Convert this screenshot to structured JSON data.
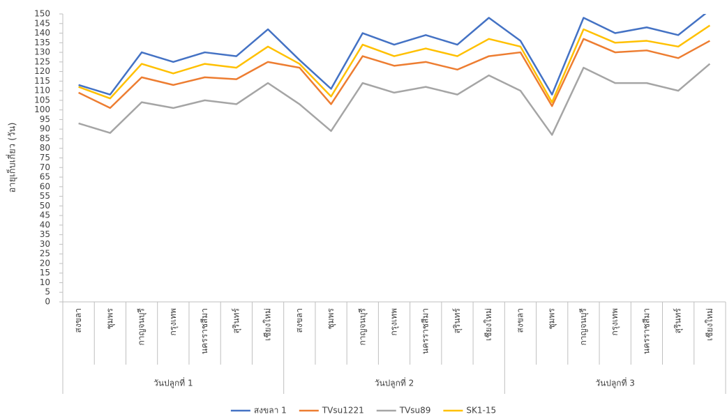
{
  "chart_data": {
    "type": "line",
    "y_label": "อายุเก็บเกี่ยว (วัน)",
    "categories": [
      "สงขลา",
      "ชุมพร",
      "กาญจนบุรี",
      "กรุงเทพ",
      "นครราชสีมา",
      "สุรินทร์",
      "เชียงใหม่",
      "สงขลา",
      "ชุมพร",
      "กาญจนบุรี",
      "กรุงเทพ",
      "นครราชสีมา",
      "สุรินทร์",
      "เชียงใหม่",
      "สงขลา",
      "ชุมพร",
      "กาญจนบุรี",
      "กรุงเทพ",
      "นครราชสีมา",
      "สุรินทร์",
      "เชียงใหม่"
    ],
    "category_groups": [
      "วันปลูกที่ 1",
      "วันปลูกที่ 2",
      "วันปลูกที่ 3"
    ],
    "series": [
      {
        "name": "สงขลา 1",
        "color": "#4472c4",
        "values": [
          113,
          108,
          130,
          125,
          130,
          128,
          142,
          126,
          111,
          140,
          134,
          139,
          134,
          148,
          136,
          108,
          148,
          140,
          143,
          139,
          152
        ]
      },
      {
        "name": "TVsu1221",
        "color": "#ed7d31",
        "values": [
          109,
          101,
          117,
          113,
          117,
          116,
          125,
          122,
          103,
          128,
          123,
          125,
          121,
          128,
          130,
          102,
          137,
          130,
          131,
          127,
          136
        ]
      },
      {
        "name": "TVsu89",
        "color": "#a5a5a5",
        "values": [
          93,
          88,
          104,
          101,
          105,
          103,
          114,
          103,
          89,
          114,
          109,
          112,
          108,
          118,
          110,
          87,
          122,
          114,
          114,
          110,
          124
        ]
      },
      {
        "name": "SK1-15",
        "color": "#ffc000",
        "values": [
          112,
          106,
          124,
          119,
          124,
          122,
          133,
          124,
          107,
          134,
          128,
          132,
          128,
          137,
          133,
          104,
          142,
          135,
          136,
          133,
          144
        ]
      }
    ],
    "ylim": [
      0,
      150
    ],
    "yticks": [
      0,
      5,
      10,
      15,
      20,
      25,
      30,
      35,
      40,
      45,
      50,
      55,
      60,
      65,
      70,
      75,
      80,
      85,
      90,
      95,
      100,
      105,
      110,
      115,
      120,
      125,
      130,
      135,
      140,
      145,
      150
    ],
    "legend": "bottom"
  }
}
